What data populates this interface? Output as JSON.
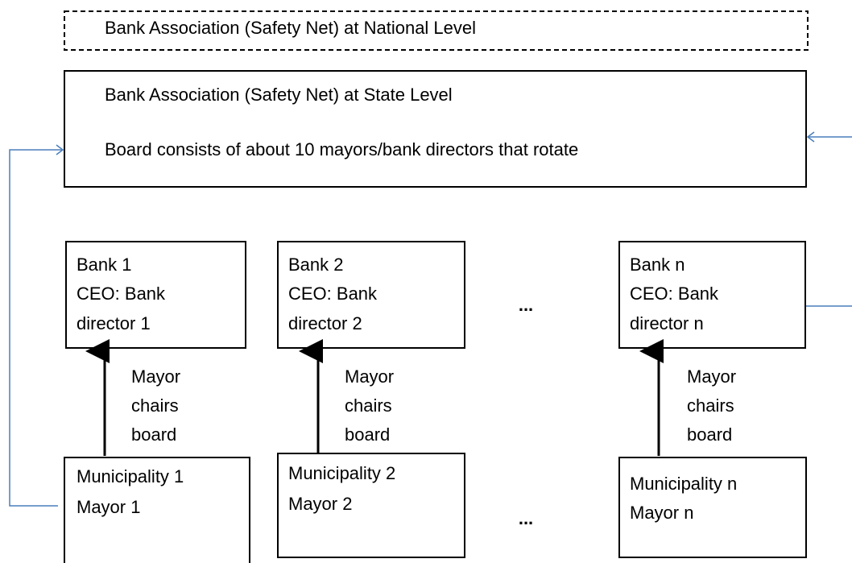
{
  "national": {
    "label": "Bank Association (Safety Net) at National Level"
  },
  "state": {
    "lines": [
      "Bank Association (Safety Net) at State Level",
      "Board consists of about 10 mayors/bank directors that rotate"
    ]
  },
  "banks": [
    {
      "lines": [
        "Bank 1",
        "CEO: Bank",
        "director 1"
      ]
    },
    {
      "lines": [
        "Bank 2",
        "CEO: Bank",
        "director 2"
      ]
    },
    {
      "lines": [
        "Bank n",
        "CEO: Bank",
        "director n"
      ]
    }
  ],
  "edges": [
    {
      "lines": [
        "Mayor",
        "chairs",
        "board"
      ]
    },
    {
      "lines": [
        "Mayor",
        "chairs",
        "board"
      ]
    },
    {
      "lines": [
        "Mayor",
        "chairs",
        "board"
      ]
    }
  ],
  "municipalities": [
    {
      "lines": [
        "Municipality 1",
        "Mayor 1"
      ]
    },
    {
      "lines": [
        "Municipality 2",
        "Mayor 2"
      ]
    },
    {
      "lines": [
        "Municipality n",
        "Mayor n"
      ]
    }
  ],
  "ellipsis": [
    "...",
    "..."
  ]
}
